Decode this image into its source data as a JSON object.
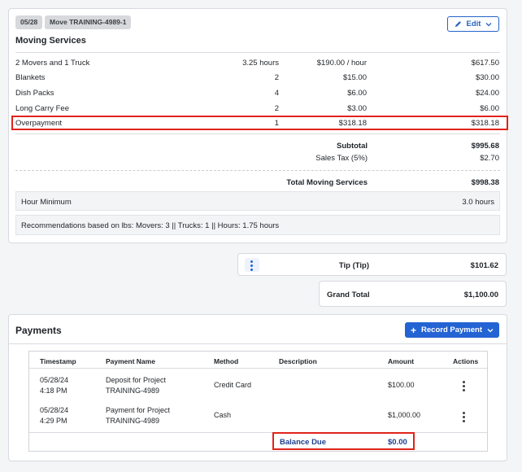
{
  "header": {
    "date_tag": "05/28",
    "move_tag": "Move TRAINING-4989-1",
    "title": "Moving Services",
    "edit_label": "Edit"
  },
  "line_items": [
    {
      "name": "2 Movers and 1 Truck",
      "qty": "3.25 hours",
      "rate": "$190.00 / hour",
      "amount": "$617.50"
    },
    {
      "name": "Blankets",
      "qty": "2",
      "rate": "$15.00",
      "amount": "$30.00"
    },
    {
      "name": "Dish Packs",
      "qty": "4",
      "rate": "$6.00",
      "amount": "$24.00"
    },
    {
      "name": "Long Carry Fee",
      "qty": "2",
      "rate": "$3.00",
      "amount": "$6.00"
    },
    {
      "name": "Overpayment",
      "qty": "1",
      "rate": "$318.18",
      "amount": "$318.18"
    }
  ],
  "totals": {
    "subtotal_label": "Subtotal",
    "subtotal_value": "$995.68",
    "tax_label": "Sales Tax (5%)",
    "tax_value": "$2.70",
    "total_label": "Total Moving Services",
    "total_value": "$998.38"
  },
  "hour_minimum": {
    "label": "Hour Minimum",
    "value": "3.0 hours"
  },
  "recommendations": "Recommendations based on lbs:  Movers: 3 || Trucks: 1 || Hours: 1.75 hours",
  "tip": {
    "label": "Tip (Tip)",
    "value": "$101.62"
  },
  "grand_total": {
    "label": "Grand Total",
    "value": "$1,100.00"
  },
  "payments": {
    "title": "Payments",
    "record_label": "Record Payment",
    "columns": [
      "Timestamp",
      "Payment Name",
      "Method",
      "Description",
      "Amount",
      "Actions"
    ],
    "rows": [
      {
        "date": "05/28/24",
        "time": "4:18 PM",
        "name1": "Deposit for Project",
        "name2": "TRAINING-4989",
        "method": "Credit Card",
        "description": "",
        "amount": "$100.00"
      },
      {
        "date": "05/28/24",
        "time": "4:29 PM",
        "name1": "Payment for Project",
        "name2": "TRAINING-4989",
        "method": "Cash",
        "description": "",
        "amount": "$1,000.00"
      }
    ],
    "balance_label": "Balance Due",
    "balance_value": "$0.00"
  },
  "colors": {
    "accent": "#2463d3",
    "highlight": "#e0241b",
    "balance_text": "#1d3f8f"
  }
}
